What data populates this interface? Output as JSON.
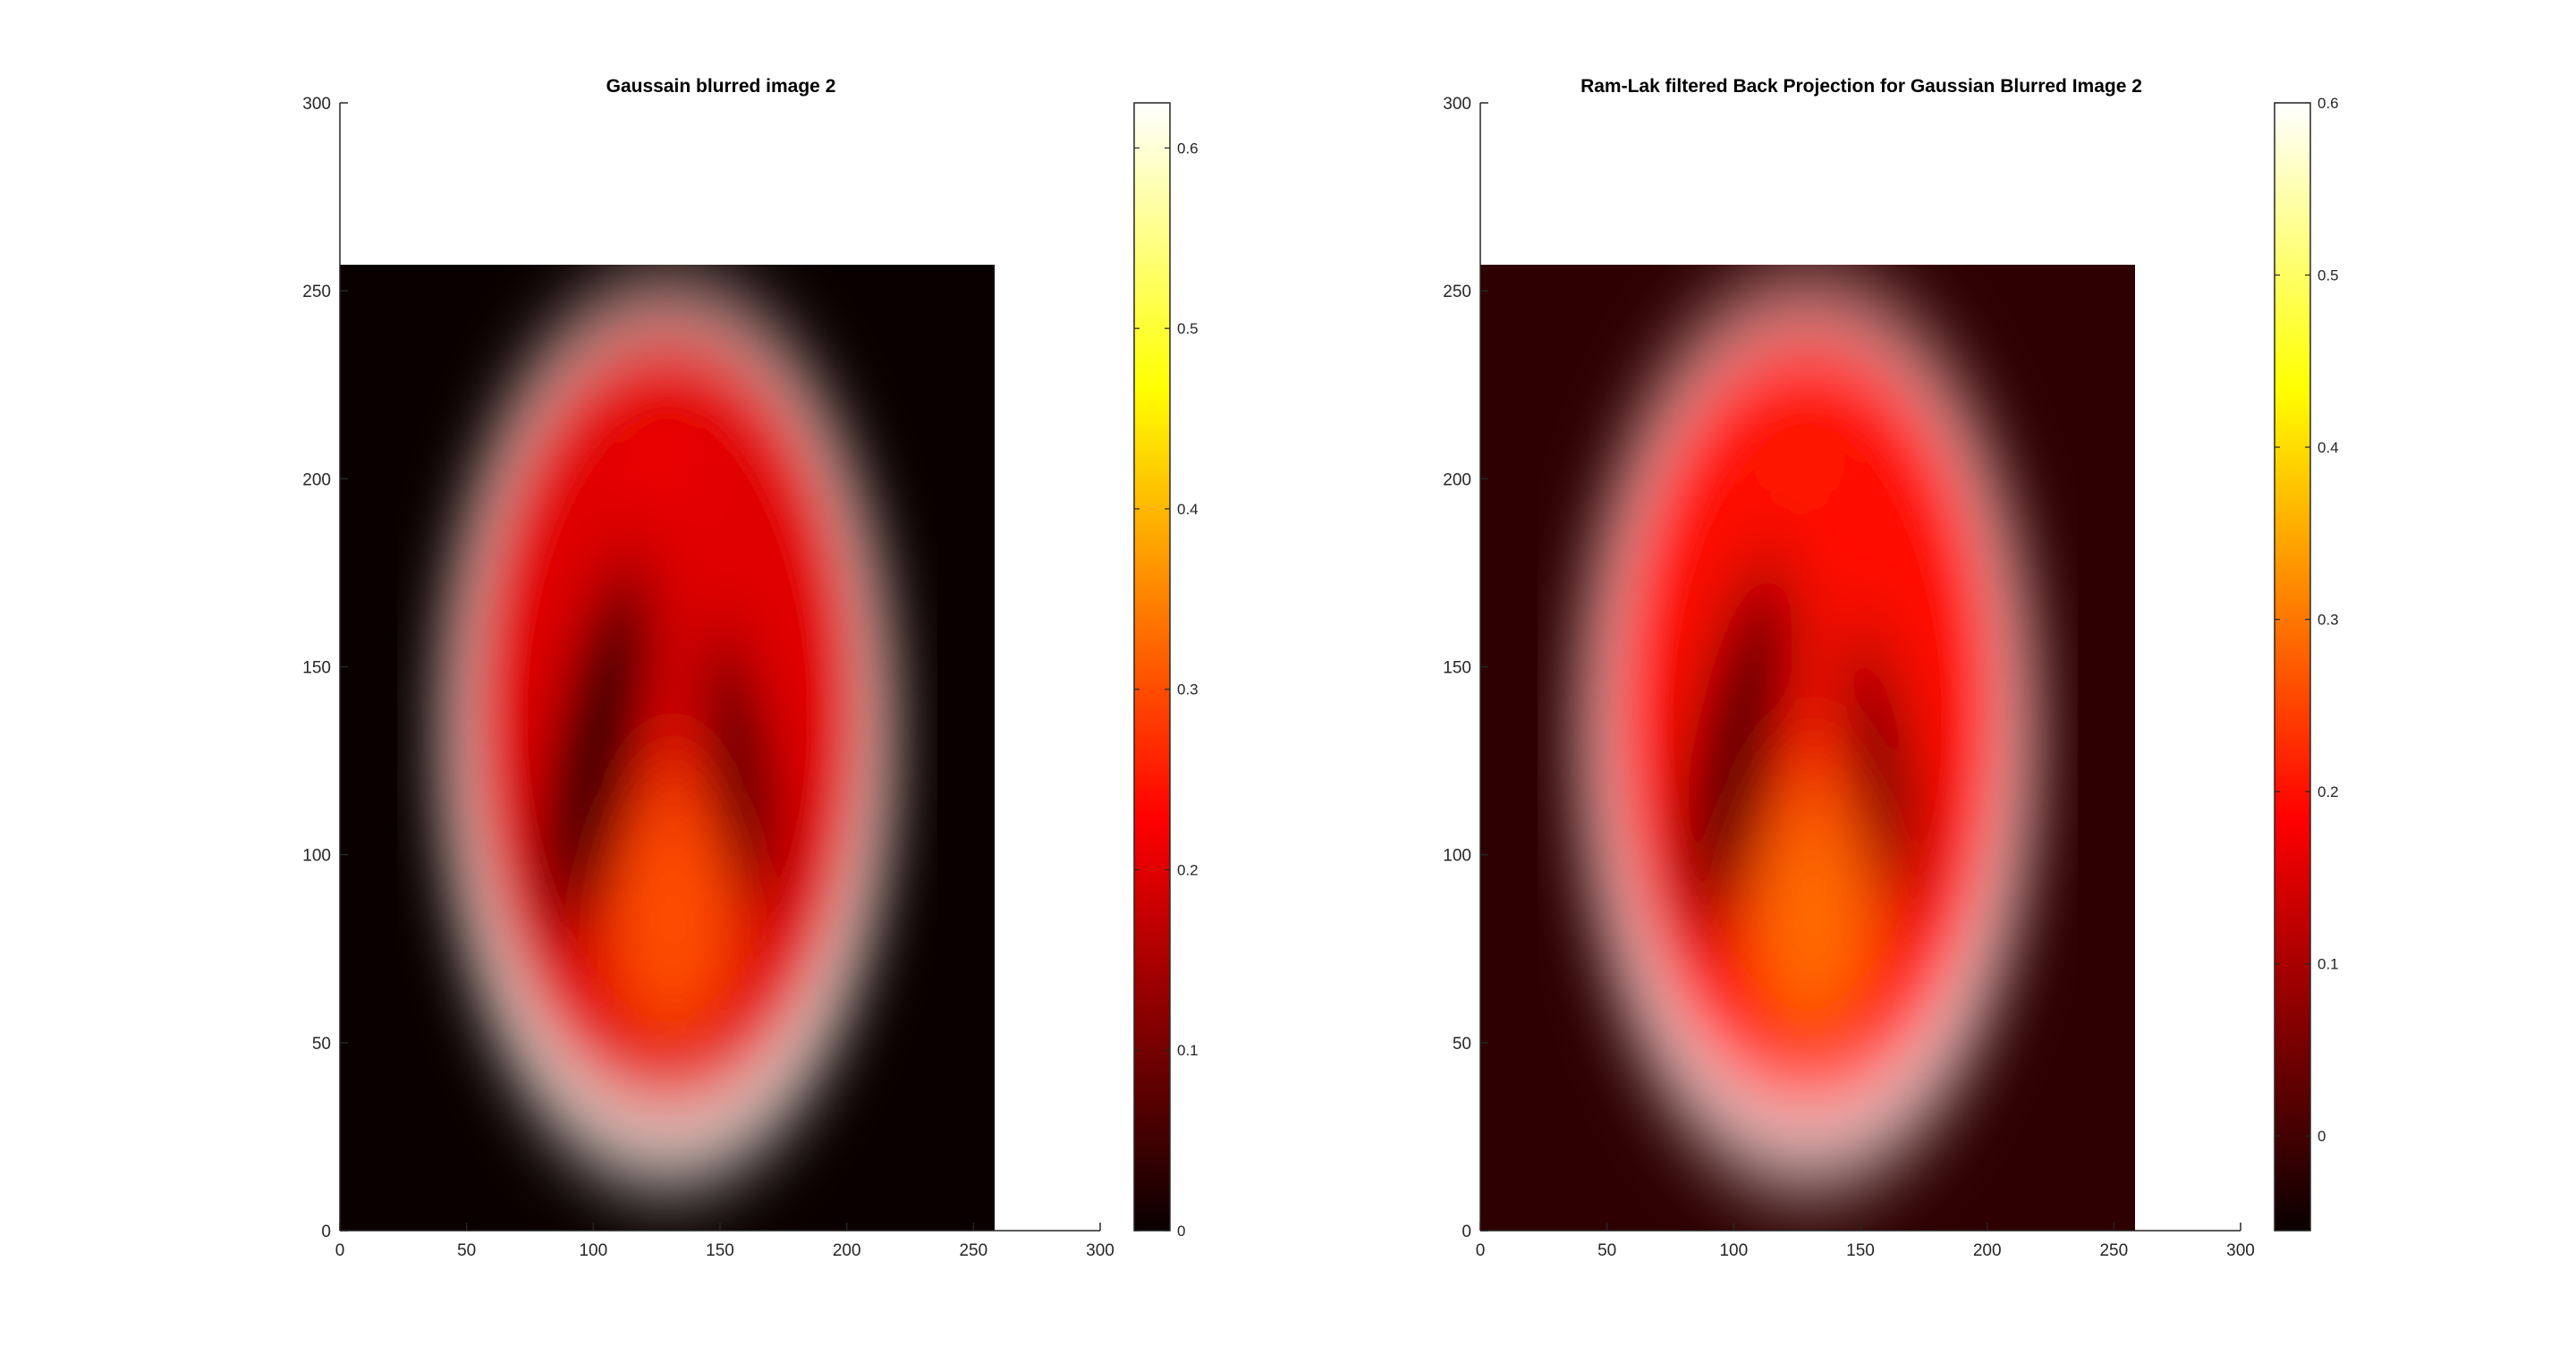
{
  "chart_data": [
    {
      "type": "heatmap",
      "title": "Gaussain blurred image 2",
      "xlabel": "",
      "ylabel": "",
      "xlim": [
        0,
        300
      ],
      "ylim": [
        0,
        300
      ],
      "xticks": [
        0,
        50,
        100,
        150,
        200,
        250,
        300
      ],
      "yticks": [
        0,
        50,
        100,
        150,
        200,
        250,
        300
      ],
      "image_extent": {
        "x": [
          0,
          256
        ],
        "y": [
          0,
          256
        ]
      },
      "colormap": "hot",
      "colorbar": {
        "clim": [
          0,
          0.625
        ],
        "ticks": [
          0,
          0.1,
          0.2,
          0.3,
          0.4,
          0.5,
          0.6
        ]
      },
      "phantom_intensity": {
        "background": 0.0,
        "outer_rim": 0.62,
        "inner_body": 0.2,
        "dark_lobes": 0.0,
        "central_spot": 0.3,
        "top_spot": 0.25
      },
      "grid": false
    },
    {
      "type": "heatmap",
      "title": "Ram-Lak filtered Back Projection for Gaussian Blurred Image 2",
      "xlabel": "",
      "ylabel": "",
      "xlim": [
        0,
        300
      ],
      "ylim": [
        0,
        300
      ],
      "xticks": [
        0,
        50,
        100,
        150,
        200,
        250,
        300
      ],
      "yticks": [
        0,
        50,
        100,
        150,
        200,
        250,
        300
      ],
      "image_extent": {
        "x": [
          0,
          256
        ],
        "y": [
          0,
          256
        ]
      },
      "colormap": "hot",
      "colorbar": {
        "clim": [
          -0.055,
          0.6
        ],
        "ticks": [
          0,
          0.1,
          0.2,
          0.3,
          0.4,
          0.5,
          0.6
        ]
      },
      "phantom_intensity": {
        "background": -0.02,
        "outer_rim": 0.6,
        "inner_body": 0.2,
        "dark_lobes": -0.02,
        "central_spot": 0.29,
        "top_spot": 0.23
      },
      "grid": false
    }
  ]
}
